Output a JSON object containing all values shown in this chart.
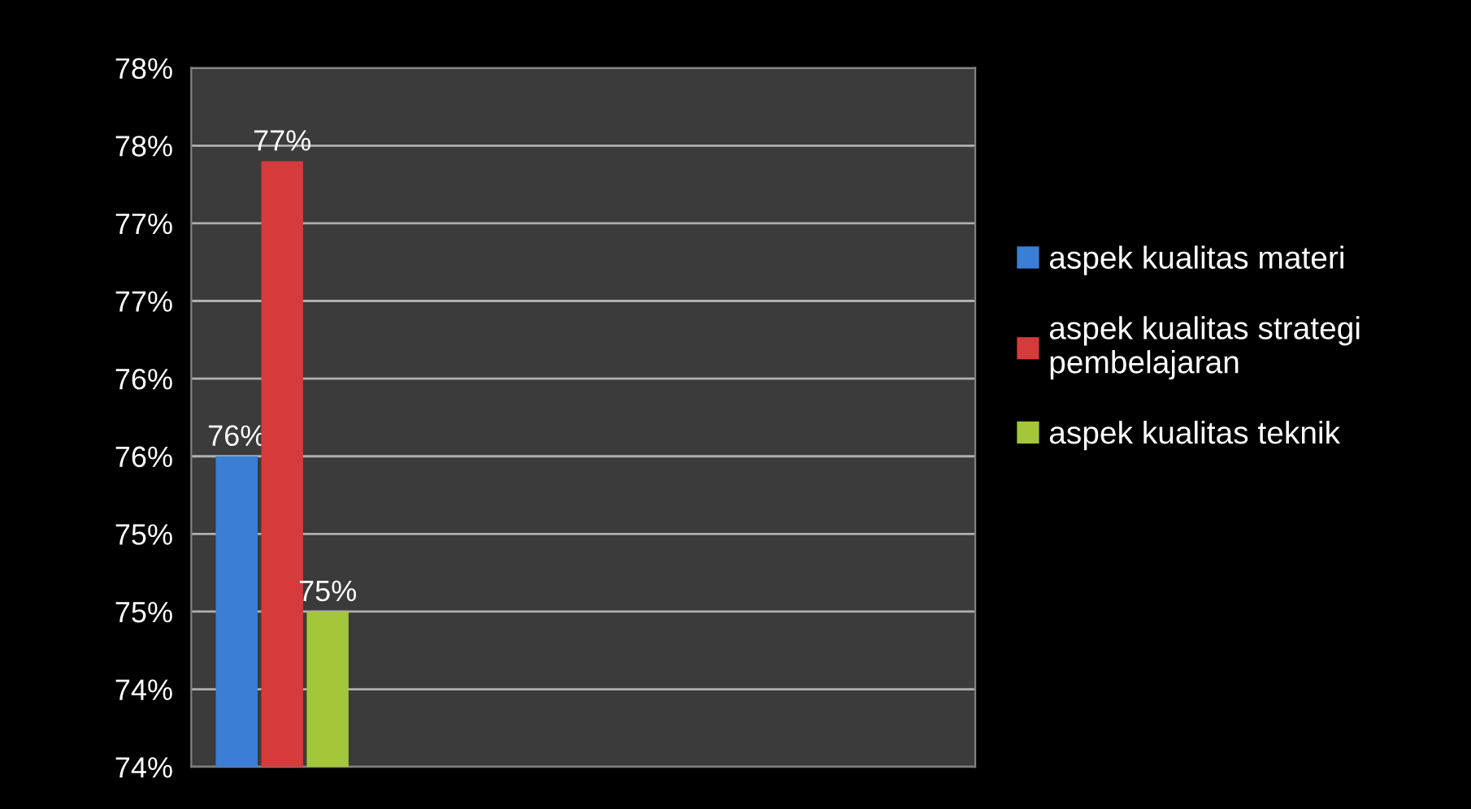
{
  "chart_data": {
    "type": "bar",
    "categories": [
      null
    ],
    "series": [
      {
        "name": "aspek kualitas materi",
        "color": "#3a7fd5",
        "values": [
          75.5
        ],
        "value_labels": [
          "76%"
        ]
      },
      {
        "name": "aspek kualitas strategi pembelajaran",
        "color": "#d63a3a",
        "values": [
          77.4
        ],
        "value_labels": [
          "77%"
        ]
      },
      {
        "name": "aspek kualitas teknik",
        "color": "#a3c63a",
        "values": [
          74.5
        ],
        "value_labels": [
          "75%"
        ]
      }
    ],
    "ylim": [
      73.5,
      78
    ],
    "yticks": [
      {
        "value": 73.5,
        "label": "74%"
      },
      {
        "value": 74,
        "label": "74%"
      },
      {
        "value": 74.5,
        "label": "75%"
      },
      {
        "value": 75,
        "label": "75%"
      },
      {
        "value": 75.5,
        "label": "76%"
      },
      {
        "value": 76,
        "label": "76%"
      },
      {
        "value": 76.5,
        "label": "77%"
      },
      {
        "value": 77,
        "label": "77%"
      },
      {
        "value": 77.5,
        "label": "78%"
      },
      {
        "value": 78,
        "label": "78%"
      }
    ],
    "grid": "y",
    "legend": "right"
  }
}
